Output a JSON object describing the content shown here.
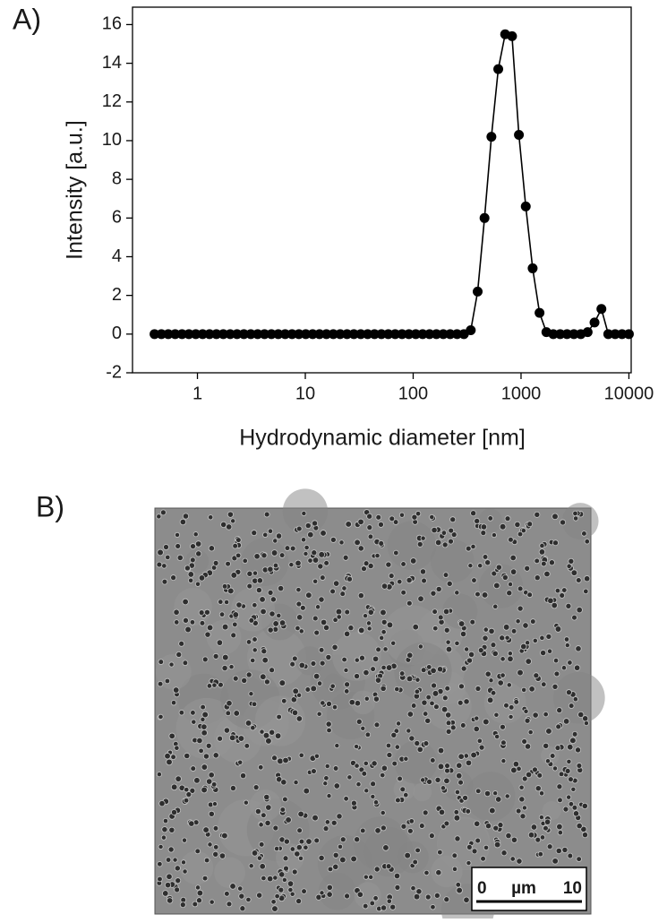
{
  "panels": {
    "a": "A)",
    "b": "B)"
  },
  "chart_data": {
    "type": "line",
    "xlabel": "Hydrodynamic diameter [nm]",
    "ylabel": "Intensity [a.u.]",
    "xscale": "log",
    "xlim": [
      0.25,
      10500
    ],
    "ylim": [
      -2,
      16.9
    ],
    "xticks": [
      1,
      10,
      100,
      1000,
      10000
    ],
    "yticks": [
      -2,
      0,
      2,
      4,
      6,
      8,
      10,
      12,
      14,
      16
    ],
    "color": "#000000",
    "x": [
      0.4,
      0.4632,
      0.5365,
      0.6213,
      0.7195,
      0.8332,
      0.9649,
      1.117,
      1.294,
      1.499,
      1.736,
      2.01,
      2.328,
      2.696,
      3.122,
      3.615,
      4.187,
      4.849,
      5.615,
      6.503,
      7.531,
      8.721,
      10.1,
      11.7,
      13.54,
      15.69,
      18.17,
      21.04,
      24.36,
      28.21,
      32.67,
      37.84,
      43.82,
      50.75,
      58.77,
      68.06,
      78.82,
      91.28,
      105.7,
      122.4,
      141.8,
      164.2,
      190.1,
      220.2,
      255.0,
      295.3,
      342.0,
      396.1,
      458.7,
      531.2,
      615.1,
      712.4,
      825.0,
      955.4,
      1106,
      1281,
      1484,
      1718,
      1990,
      2305,
      2669,
      3091,
      3580,
      4145,
      4801,
      5560,
      6439,
      7456,
      8635,
      10000
    ],
    "values": [
      0,
      0,
      0,
      0,
      0,
      0,
      0,
      0,
      0,
      0,
      0,
      0,
      0,
      0,
      0,
      0,
      0,
      0,
      0,
      0,
      0,
      0,
      0,
      0,
      0,
      0,
      0,
      0,
      0,
      0,
      0,
      0,
      0,
      0,
      0,
      0,
      0,
      0,
      0,
      0,
      0,
      0,
      0,
      0,
      0,
      0,
      0.2,
      2.2,
      6.0,
      10.2,
      13.7,
      15.5,
      15.4,
      10.3,
      6.6,
      3.4,
      1.1,
      0.1,
      0,
      0,
      0,
      0,
      0,
      0.1,
      0.6,
      1.3,
      0,
      0,
      0,
      0
    ]
  },
  "scale_bar": {
    "start": "0",
    "unit": "µm",
    "end": "10"
  }
}
